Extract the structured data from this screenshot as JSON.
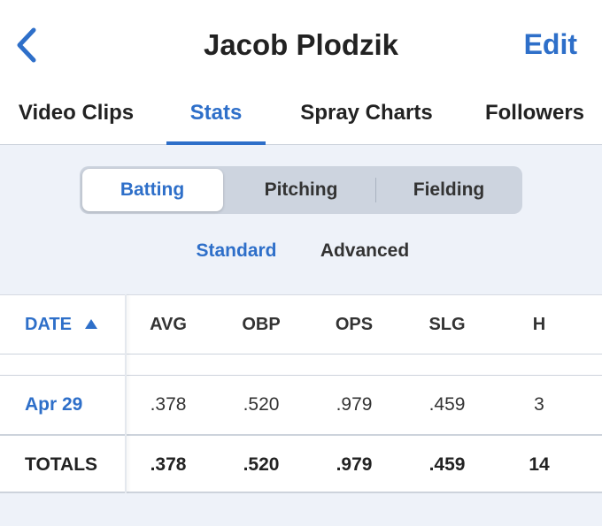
{
  "header": {
    "title": "Jacob Plodzik",
    "action": "Edit"
  },
  "tabs": {
    "items": [
      "Video Clips",
      "Stats",
      "Spray Charts",
      "Followers"
    ],
    "active": 1
  },
  "segments": {
    "items": [
      "Batting",
      "Pitching",
      "Fielding"
    ],
    "active": 0
  },
  "sub_tabs": {
    "items": [
      "Standard",
      "Advanced"
    ],
    "active": 0
  },
  "table": {
    "columns": [
      "DATE",
      "AVG",
      "OBP",
      "OPS",
      "SLG",
      "H"
    ],
    "rows": [
      [
        "Apr 29",
        ".378",
        ".520",
        ".979",
        ".459",
        "3"
      ]
    ],
    "totals": [
      "TOTALS",
      ".378",
      ".520",
      ".979",
      ".459",
      "14"
    ]
  }
}
